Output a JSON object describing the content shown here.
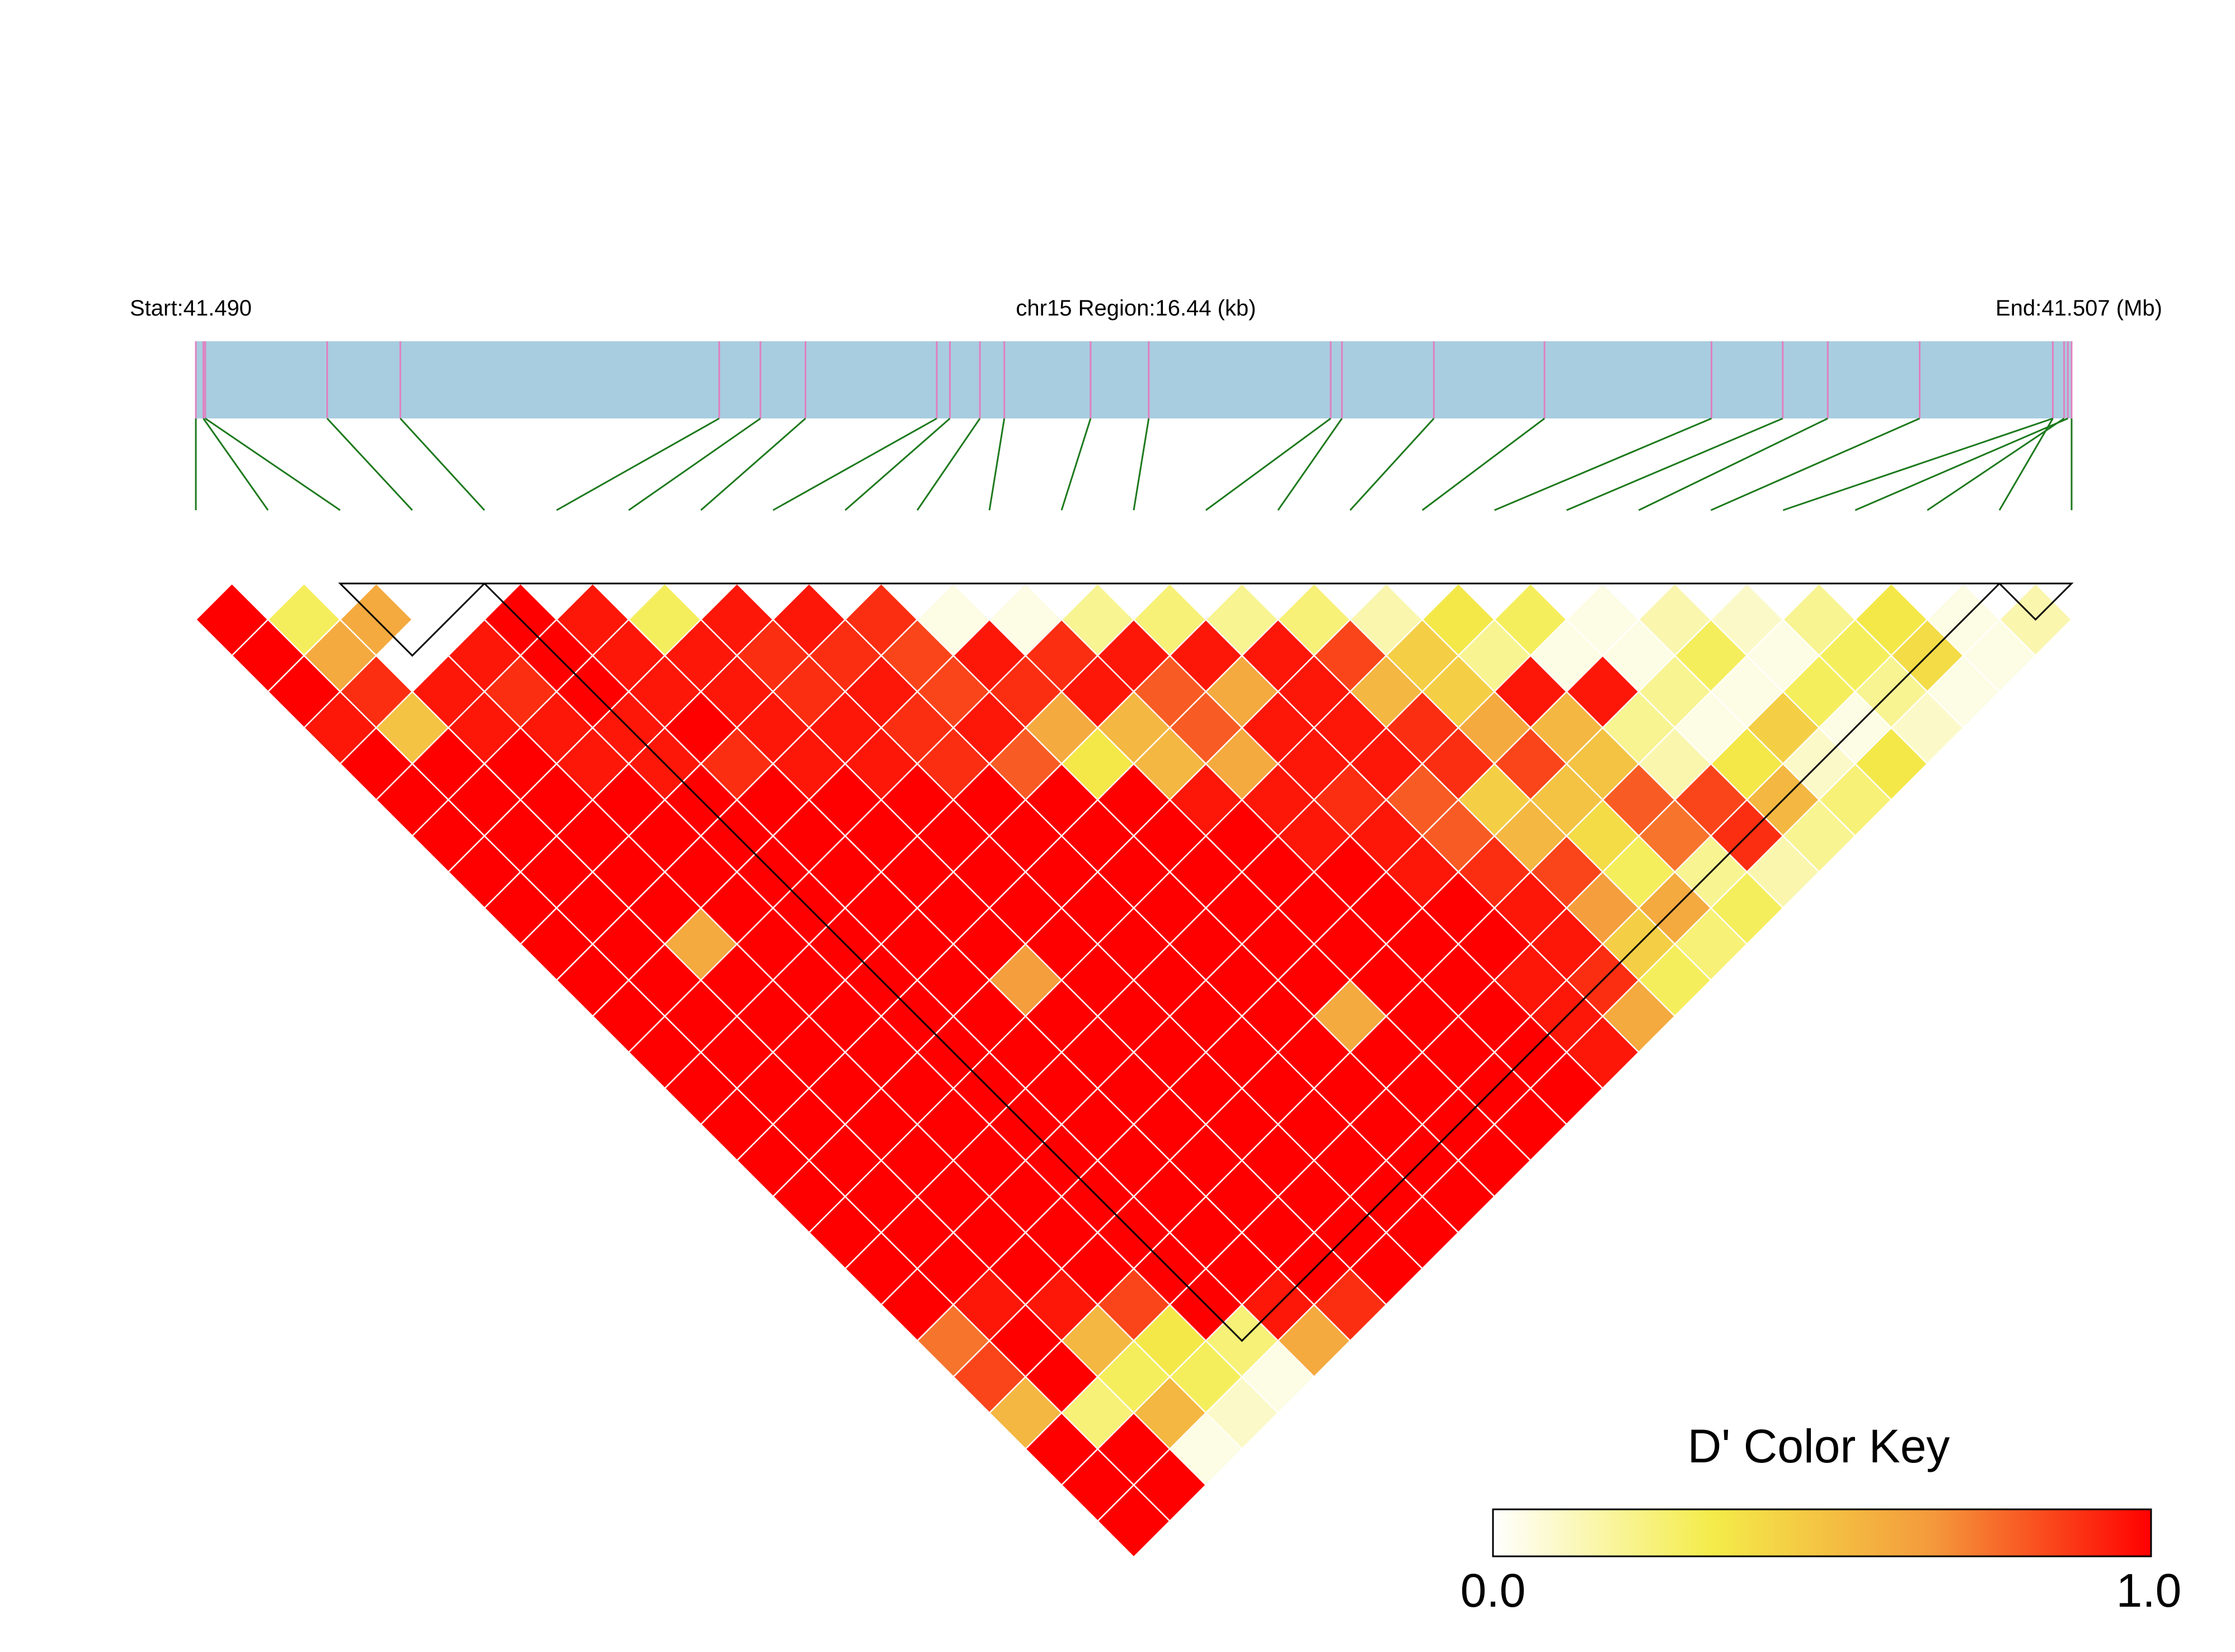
{
  "chart_data": {
    "type": "heatmap",
    "title": "",
    "header": {
      "start_label": "Start:41.490",
      "region_label": "chr15 Region:16.44 (kb)",
      "end_label": "End:41.507 (Mb)"
    },
    "region_start_mb": 41.49,
    "region_end_mb": 41.507,
    "snp_count": 27,
    "snp_positions_fraction": [
      0.0,
      0.004,
      0.005,
      0.07,
      0.109,
      0.279,
      0.301,
      0.325,
      0.395,
      0.402,
      0.418,
      0.431,
      0.477,
      0.508,
      0.605,
      0.611,
      0.66,
      0.719,
      0.808,
      0.846,
      0.87,
      0.919,
      0.99,
      0.998,
      0.996,
      0.99,
      1.0
    ],
    "dprime_matrix": [
      [
        1.0,
        0.3,
        0.6,
        0.0,
        1.0,
        0.95,
        0.3,
        0.95,
        0.95,
        0.9,
        0.05,
        0.05,
        0.2,
        0.25,
        0.2,
        0.25,
        0.15,
        0.35,
        0.3,
        0.05,
        0.15,
        0.1,
        0.2,
        0.35,
        0.05,
        0.15
      ],
      [
        1.0,
        0.6,
        0.0,
        0.95,
        1.0,
        0.95,
        0.95,
        0.9,
        0.9,
        0.85,
        0.95,
        0.9,
        0.95,
        0.95,
        0.95,
        0.85,
        0.45,
        0.2,
        0.05,
        0.05,
        0.3,
        0.05,
        0.3,
        0.4,
        0.05
      ],
      [
        1.0,
        0.9,
        0.95,
        0.9,
        1.0,
        0.95,
        0.95,
        0.9,
        0.95,
        0.85,
        0.9,
        0.95,
        0.8,
        0.6,
        0.95,
        0.55,
        0.45,
        0.95,
        0.95,
        0.2,
        0.05,
        0.3,
        0.2,
        0.05
      ],
      [
        0.95,
        0.5,
        0.95,
        0.95,
        0.95,
        1.0,
        0.95,
        0.95,
        0.9,
        0.95,
        0.6,
        0.55,
        0.8,
        0.95,
        0.95,
        0.9,
        0.6,
        0.55,
        0.2,
        0.05,
        0.45,
        0.05,
        0.1
      ],
      [
        1.0,
        1.0,
        1.0,
        0.95,
        0.95,
        0.9,
        0.95,
        0.95,
        0.9,
        0.8,
        0.35,
        0.55,
        0.6,
        0.95,
        0.95,
        0.9,
        0.85,
        0.5,
        0.15,
        0.35,
        0.1,
        0.35
      ],
      [
        1.0,
        1.0,
        1.0,
        1.0,
        1.0,
        1.0,
        1.0,
        1.0,
        1.0,
        1.0,
        1.0,
        0.95,
        0.95,
        0.9,
        0.8,
        0.45,
        0.5,
        0.8,
        0.85,
        0.55,
        0.25
      ],
      [
        1.0,
        1.0,
        1.0,
        1.0,
        1.0,
        1.0,
        1.0,
        1.0,
        1.0,
        1.0,
        1.0,
        1.0,
        0.95,
        0.95,
        0.8,
        0.55,
        0.4,
        0.75,
        0.9,
        0.2
      ],
      [
        1.0,
        1.0,
        1.0,
        1.0,
        1.0,
        1.0,
        1.0,
        1.0,
        1.0,
        1.0,
        1.0,
        1.0,
        1.0,
        0.95,
        0.9,
        0.85,
        0.3,
        0.2,
        0.15
      ],
      [
        1.0,
        1.0,
        1.0,
        1.0,
        1.0,
        1.0,
        1.0,
        1.0,
        1.0,
        1.0,
        1.0,
        1.0,
        1.0,
        1.0,
        0.95,
        0.65,
        0.6,
        0.3
      ],
      [
        1.0,
        1.0,
        0.6,
        1.0,
        1.0,
        1.0,
        1.0,
        1.0,
        1.0,
        1.0,
        1.0,
        1.0,
        1.0,
        1.0,
        0.95,
        0.45,
        0.25
      ],
      [
        1.0,
        1.0,
        1.0,
        1.0,
        1.0,
        1.0,
        0.65,
        1.0,
        1.0,
        1.0,
        1.0,
        1.0,
        1.0,
        0.95,
        0.9,
        0.3
      ],
      [
        1.0,
        1.0,
        1.0,
        1.0,
        1.0,
        1.0,
        1.0,
        1.0,
        1.0,
        1.0,
        0.6,
        1.0,
        1.0,
        0.95,
        0.6
      ],
      [
        1.0,
        1.0,
        1.0,
        1.0,
        1.0,
        1.0,
        1.0,
        1.0,
        1.0,
        1.0,
        1.0,
        1.0,
        1.0,
        0.95
      ],
      [
        1.0,
        1.0,
        1.0,
        1.0,
        1.0,
        1.0,
        1.0,
        1.0,
        1.0,
        1.0,
        1.0,
        1.0,
        1.0
      ],
      [
        1.0,
        1.0,
        1.0,
        1.0,
        1.0,
        1.0,
        1.0,
        1.0,
        1.0,
        1.0,
        1.0,
        1.0
      ],
      [
        1.0,
        1.0,
        1.0,
        1.0,
        1.0,
        1.0,
        1.0,
        1.0,
        1.0,
        1.0,
        1.0
      ],
      [
        1.0,
        1.0,
        1.0,
        1.0,
        1.0,
        1.0,
        1.0,
        1.0,
        1.0,
        1.0
      ],
      [
        1.0,
        1.0,
        1.0,
        1.0,
        1.0,
        1.0,
        1.0,
        1.0,
        1.0
      ],
      [
        1.0,
        1.0,
        1.0,
        1.0,
        1.0,
        1.0,
        1.0,
        1.0
      ],
      [
        1.0,
        0.95,
        0.95,
        0.85,
        1.0,
        0.95,
        0.9
      ],
      [
        0.75,
        1.0,
        0.55,
        0.35,
        0.25,
        0.6
      ],
      [
        0.85,
        1.0,
        0.3,
        0.3,
        0.05
      ],
      [
        0.55,
        0.25,
        0.55,
        0.1
      ],
      [
        1.0,
        1.0,
        0.05
      ],
      [
        1.0,
        1.0
      ],
      [
        1.0
      ]
    ],
    "ld_blocks": [
      [
        3,
        5
      ],
      [
        5,
        26
      ],
      [
        26,
        27
      ]
    ],
    "color_key": {
      "title": "D' Color Key",
      "min_label": "0.0",
      "max_label": "1.0",
      "gradient_stops": [
        "#ffffff",
        "#f4ec4a",
        "#f49a3c",
        "#ff0000"
      ]
    },
    "colors": {
      "track_fill": "#a8cde0",
      "snp_tick": "#e080c0",
      "connector": "#1e7a1e",
      "cell_border": "#ffffff",
      "block_outline": "#000000"
    }
  }
}
